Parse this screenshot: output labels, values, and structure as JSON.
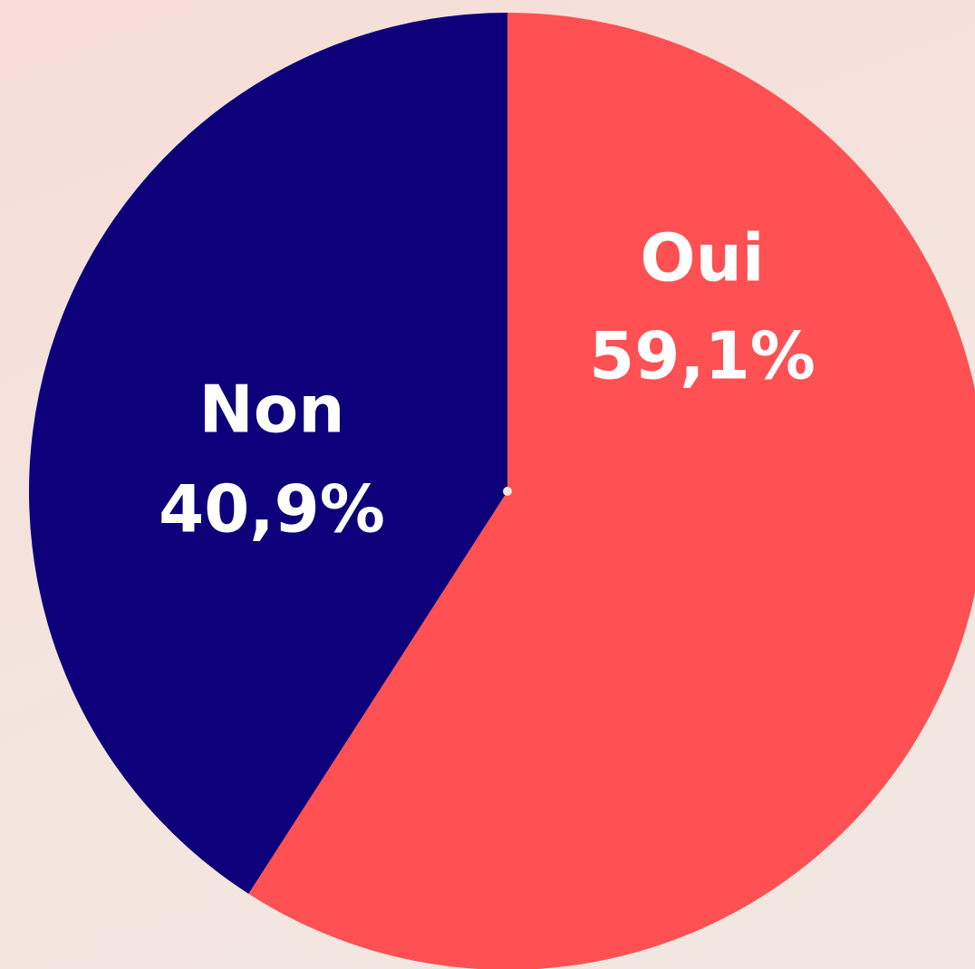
{
  "chart_data": {
    "type": "pie",
    "categories": [
      "Oui",
      "Non"
    ],
    "values": [
      59.1,
      40.9
    ],
    "value_labels": [
      "59,1%",
      "40,9%"
    ],
    "colors": [
      "#ff5053",
      "#0d007a"
    ]
  }
}
